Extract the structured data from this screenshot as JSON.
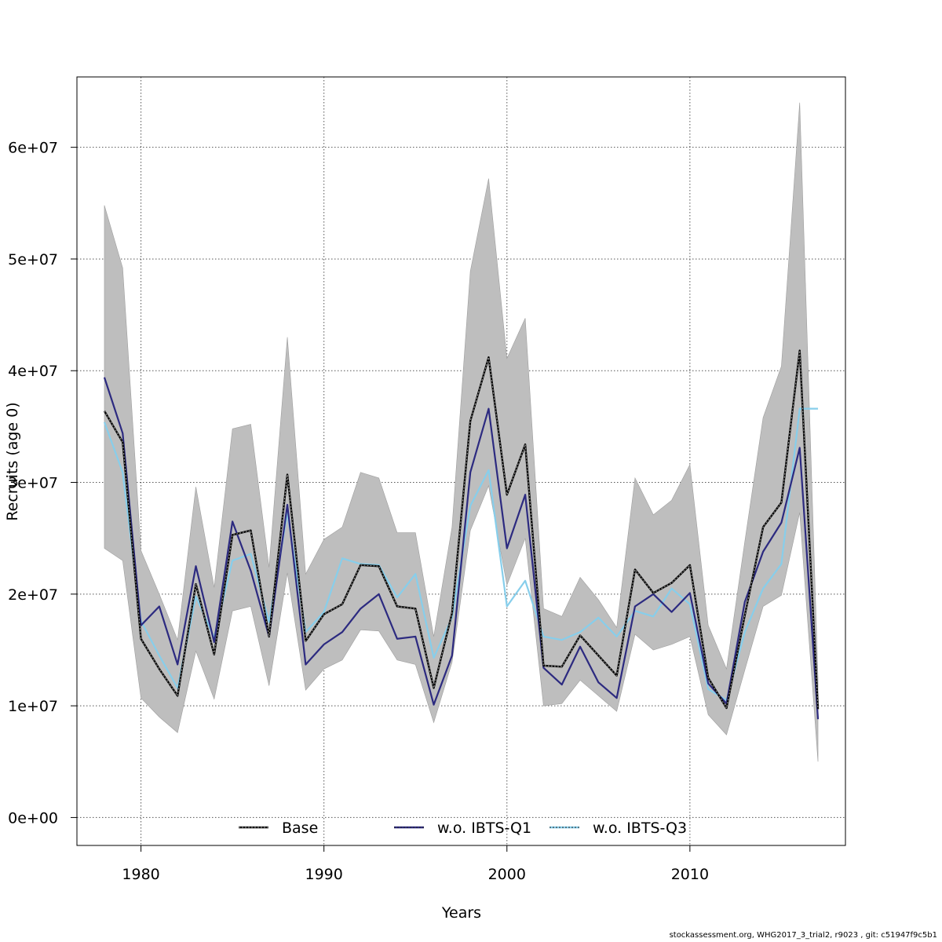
{
  "chart_data": {
    "type": "line",
    "title": "",
    "xlabel": "Years",
    "ylabel": "Recruits (age 0)",
    "xlim": [
      1976.5,
      2018.5
    ],
    "ylim": [
      -2500000,
      66300000
    ],
    "grid": true,
    "x_ticks": [
      1980,
      1990,
      2000,
      2010
    ],
    "x_tick_labels": [
      "1980",
      "1990",
      "2000",
      "2010"
    ],
    "y_ticks": [
      0,
      10000000,
      20000000,
      30000000,
      40000000,
      50000000,
      60000000
    ],
    "y_tick_labels": [
      "0e+00",
      "1e+07",
      "2e+07",
      "3e+07",
      "4e+07",
      "5e+07",
      "6e+07"
    ],
    "legend_position": "bottom",
    "x": [
      1978,
      1979,
      1980,
      1981,
      1982,
      1983,
      1984,
      1985,
      1986,
      1987,
      1988,
      1989,
      1990,
      1991,
      1992,
      1993,
      1994,
      1995,
      1996,
      1997,
      1998,
      1999,
      2000,
      2001,
      2002,
      2003,
      2004,
      2005,
      2006,
      2007,
      2008,
      2009,
      2010,
      2011,
      2012,
      2013,
      2014,
      2015,
      2016,
      2017
    ],
    "band": {
      "color": "#bebebe",
      "lower": [
        24100000,
        23000000,
        10700000,
        9000000,
        7600000,
        14900000,
        10600000,
        18500000,
        18900000,
        11800000,
        21900000,
        11400000,
        13300000,
        14100000,
        16800000,
        16700000,
        14100000,
        13700000,
        8500000,
        13900000,
        25700000,
        29700000,
        20800000,
        25000000,
        10000000,
        10200000,
        12300000,
        10900000,
        9500000,
        16400000,
        15000000,
        15500000,
        16200000,
        9200000,
        7400000,
        13200000,
        18900000,
        19900000,
        27300000,
        5000000
      ],
      "upper": [
        54800000,
        49200000,
        23900000,
        20000000,
        15900000,
        29600000,
        20600000,
        34800000,
        35200000,
        22400000,
        43000000,
        21800000,
        24900000,
        26000000,
        30900000,
        30400000,
        25500000,
        25500000,
        16200000,
        26000000,
        48900000,
        57200000,
        41100000,
        44700000,
        18700000,
        18000000,
        21500000,
        19500000,
        17000000,
        30400000,
        27100000,
        28400000,
        31600000,
        17200000,
        13300000,
        24700000,
        35800000,
        40400000,
        64000000,
        12500000
      ]
    },
    "series": [
      {
        "name": "Base",
        "color": "#000000",
        "values": [
          36400000,
          33600000,
          16000000,
          13300000,
          10900000,
          20900000,
          14600000,
          25300000,
          25700000,
          16200000,
          30700000,
          15800000,
          18200000,
          19100000,
          22600000,
          22500000,
          18900000,
          18700000,
          11600000,
          18300000,
          35500000,
          41200000,
          28900000,
          33400000,
          13600000,
          13500000,
          16300000,
          14500000,
          12700000,
          22200000,
          20100000,
          21000000,
          22600000,
          12500000,
          9800000,
          18100000,
          26000000,
          28200000,
          41800000,
          9700000
        ]
      },
      {
        "name": "w.o. IBTS-Q1",
        "color": "#2c2a80",
        "values": [
          39400000,
          34400000,
          17200000,
          18900000,
          13700000,
          22500000,
          15700000,
          26500000,
          22100000,
          16200000,
          28000000,
          13700000,
          15500000,
          16600000,
          18700000,
          20000000,
          16000000,
          16200000,
          10100000,
          14500000,
          30900000,
          36600000,
          24100000,
          28900000,
          13400000,
          11900000,
          15300000,
          12100000,
          10700000,
          18900000,
          20000000,
          18400000,
          20100000,
          12000000,
          10200000,
          19300000,
          23800000,
          26400000,
          33100000,
          8800000
        ]
      },
      {
        "name": "w.o. IBTS-Q3",
        "color": "#87ceeb",
        "values": [
          35400000,
          30900000,
          17600000,
          14500000,
          11600000,
          19800000,
          16100000,
          23000000,
          23600000,
          17500000,
          27300000,
          16600000,
          18400000,
          23200000,
          22700000,
          22600000,
          19700000,
          21800000,
          14300000,
          17900000,
          27900000,
          31100000,
          18900000,
          21200000,
          16200000,
          15900000,
          16600000,
          17900000,
          16200000,
          18500000,
          18000000,
          20500000,
          19100000,
          11500000,
          10500000,
          16600000,
          20500000,
          22700000,
          36600000,
          36600000
        ]
      }
    ]
  },
  "footer_text": "stockassessment.org, WHG2017_3_trial2, r9023 , git: c51947f9c5b1"
}
